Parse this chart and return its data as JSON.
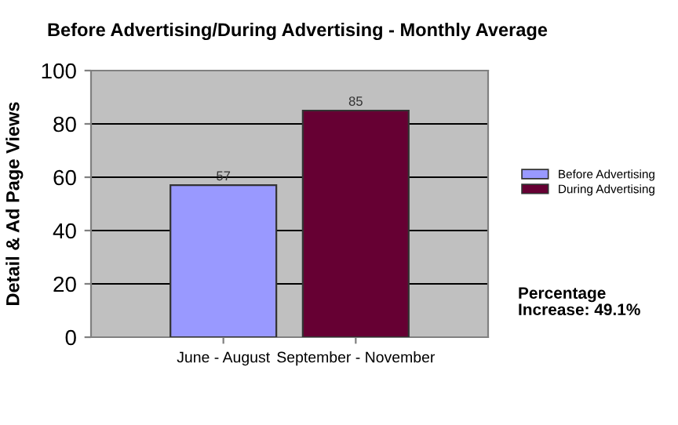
{
  "chart_data": {
    "type": "bar",
    "title": "Before Advertising/During Advertising - Monthly Average",
    "ylabel": "Detail & Ad Page Views",
    "categories": [
      "June - August",
      "September - November"
    ],
    "series": [
      {
        "name": "Before Advertising",
        "color": "#9999ff",
        "values": [
          57,
          null
        ]
      },
      {
        "name": "During Advertising",
        "color": "#660033",
        "values": [
          null,
          85
        ]
      }
    ],
    "ylim": [
      0,
      100
    ],
    "yticks": [
      0,
      20,
      40,
      60,
      80,
      100
    ],
    "grid": "y",
    "legend": "right",
    "data_labels": true,
    "annotations": [
      "Percentage\nIncrease: 49.1%"
    ]
  }
}
